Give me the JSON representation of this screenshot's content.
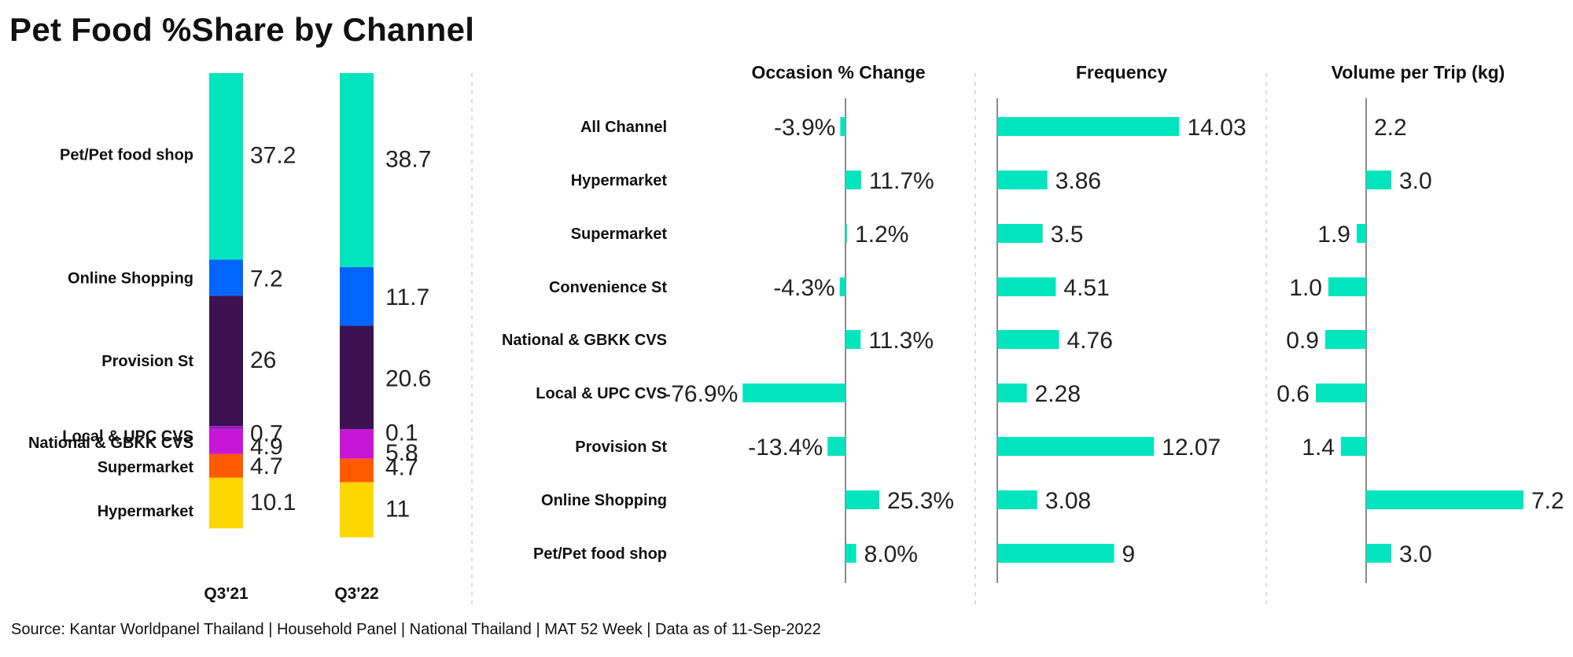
{
  "title": "Pet Food %Share by Channel",
  "source": "Source: Kantar Worldpanel Thailand | Household Panel | National Thailand | MAT 52 Week | Data as of 11-Sep-2022",
  "colors": {
    "accent": "#00E5BE",
    "axis": "#8a8a8a",
    "segments": {
      "Pet/Pet food shop": "#00E5BE",
      "Online Shopping": "#0066FF",
      "Provision St": "#3D1152",
      "Local & UPC CVS": "#9A1BC2",
      "National & GBKK CVS": "#C916D6",
      "Supermarket": "#FF5A00",
      "Hypermarket": "#FFD700"
    }
  },
  "chart_data": [
    {
      "type": "bar",
      "stacked": true,
      "title": "",
      "categories": [
        "Q3'21",
        "Q3'22"
      ],
      "segment_labels": [
        "Pet/Pet food shop",
        "Online Shopping",
        "Provision St",
        "Local & UPC CVS",
        "National & GBKK CVS",
        "Supermarket",
        "Hypermarket"
      ],
      "series": [
        {
          "name": "Pet/Pet food shop",
          "values": [
            37.2,
            38.7
          ],
          "labels": [
            "37.2",
            "38.7"
          ]
        },
        {
          "name": "Online Shopping",
          "values": [
            7.2,
            11.7
          ],
          "labels": [
            "7.2",
            "11.7"
          ]
        },
        {
          "name": "Provision St",
          "values": [
            26,
            20.6
          ],
          "labels": [
            "26",
            "20.6"
          ]
        },
        {
          "name": "Local & UPC CVS",
          "values": [
            0.7,
            0.1
          ],
          "labels": [
            "0.7",
            "0.1"
          ]
        },
        {
          "name": "National & GBKK CVS",
          "values": [
            4.9,
            5.8
          ],
          "labels": [
            "4.9",
            "5.8"
          ]
        },
        {
          "name": "Supermarket",
          "values": [
            4.7,
            4.7
          ],
          "labels": [
            "4.7",
            "4.7"
          ]
        },
        {
          "name": "Hypermarket",
          "values": [
            10.1,
            11
          ],
          "labels": [
            "10.1",
            "11"
          ]
        }
      ]
    },
    {
      "type": "bar",
      "orientation": "horizontal",
      "title": "Occasion % Change",
      "categories": [
        "All Channel",
        "Hypermarket",
        "Supermarket",
        "Convenience St",
        "National & GBKK CVS",
        "Local & UPC CVS",
        "Provision St",
        "Online Shopping",
        "Pet/Pet food shop"
      ],
      "values": [
        -3.9,
        11.7,
        1.2,
        -4.3,
        11.3,
        -76.9,
        -13.4,
        25.3,
        8.0
      ],
      "labels": [
        "-3.9%",
        "11.7%",
        "1.2%",
        "-4.3%",
        "11.3%",
        "-76.9%",
        "-13.4%",
        "25.3%",
        "8.0%"
      ]
    },
    {
      "type": "bar",
      "orientation": "horizontal",
      "title": "Frequency",
      "categories": [
        "All Channel",
        "Hypermarket",
        "Supermarket",
        "Convenience St",
        "National & GBKK CVS",
        "Local & UPC CVS",
        "Provision St",
        "Online Shopping",
        "Pet/Pet food shop"
      ],
      "values": [
        14.03,
        3.86,
        3.5,
        4.51,
        4.76,
        2.28,
        12.07,
        3.08,
        9
      ],
      "labels": [
        "14.03",
        "3.86",
        "3.5",
        "4.51",
        "4.76",
        "2.28",
        "12.07",
        "3.08",
        "9"
      ]
    },
    {
      "type": "bar",
      "orientation": "horizontal",
      "title": "Volume per Trip (kg)",
      "categories": [
        "All Channel",
        "Hypermarket",
        "Supermarket",
        "Convenience St",
        "National & GBKK CVS",
        "Local & UPC CVS",
        "Provision St",
        "Online Shopping",
        "Pet/Pet food shop"
      ],
      "values": [
        2.2,
        3.0,
        1.9,
        1.0,
        0.9,
        0.6,
        1.4,
        7.2,
        3.0
      ],
      "labels": [
        "2.2",
        "3.0",
        "1.9",
        "1.0",
        "0.9",
        "0.6",
        "1.4",
        "7.2",
        "3.0"
      ],
      "reference": 2.2
    }
  ]
}
